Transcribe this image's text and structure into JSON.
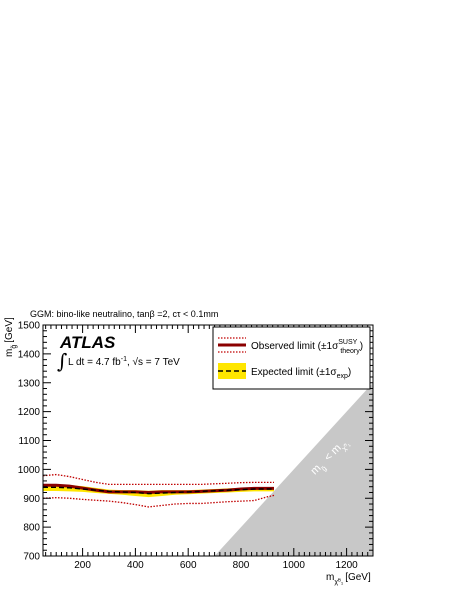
{
  "chart_data": {
    "type": "line",
    "title": "GGM: bino-like neutralino, tanβ =2, cτ < 0.1mm",
    "experiment": "ATLAS",
    "lumi_text": "L dt = 4.7 fb",
    "lumi_sup": "-1",
    "energy_text": ", √s = 7 TeV",
    "xlabel": "m",
    "xlabel_sub": "χ̃⁰₁",
    "xlabel_unit": "[GeV]",
    "ylabel": "m",
    "ylabel_sub": "g̃",
    "ylabel_unit": "[GeV]",
    "xlim": [
      50,
      1300
    ],
    "ylim": [
      700,
      1500
    ],
    "xticks": [
      200,
      400,
      600,
      800,
      1000,
      1200
    ],
    "yticks": [
      700,
      800,
      900,
      1000,
      1100,
      1200,
      1300,
      1400,
      1500
    ],
    "legend": {
      "placement": "top-right",
      "observed_label": "Observed limit (±1σ",
      "observed_sup": "SUSY",
      "observed_sub": "theory",
      "observed_end": ")",
      "expected_label": "Expected limit (±1σ",
      "expected_sub": "exp",
      "expected_end": ")"
    },
    "kinematic_region_label": "m",
    "kinematic_region_sub1": "g̃",
    "kinematic_region_lt": "<",
    "kinematic_region_sub2": "χ̃⁰₁",
    "series": [
      {
        "role": "observed",
        "x": [
          50,
          100,
          150,
          200,
          250,
          300,
          350,
          400,
          450,
          500,
          550,
          600,
          650,
          700,
          750,
          800,
          850,
          900,
          925
        ],
        "y": [
          945,
          945,
          942,
          935,
          928,
          922,
          922,
          922,
          920,
          922,
          922,
          922,
          924,
          926,
          928,
          932,
          934,
          934,
          934
        ]
      },
      {
        "role": "observed_theory_up",
        "x": [
          50,
          100,
          150,
          200,
          250,
          300,
          350,
          400,
          450,
          500,
          550,
          600,
          650,
          700,
          750,
          800,
          850,
          900,
          925
        ],
        "y": [
          978,
          982,
          975,
          965,
          955,
          948,
          948,
          948,
          948,
          948,
          948,
          948,
          948,
          950,
          952,
          954,
          955,
          955,
          955
        ]
      },
      {
        "role": "observed_theory_down",
        "x": [
          50,
          100,
          150,
          200,
          250,
          300,
          350,
          400,
          450,
          500,
          550,
          600,
          650,
          700,
          750,
          800,
          850,
          900,
          925
        ],
        "y": [
          900,
          902,
          900,
          896,
          893,
          890,
          885,
          878,
          870,
          875,
          880,
          882,
          882,
          885,
          888,
          890,
          892,
          905,
          910
        ]
      },
      {
        "role": "expected",
        "x": [
          50,
          100,
          150,
          200,
          250,
          300,
          350,
          400,
          450,
          500,
          550,
          600,
          650,
          700,
          750,
          800,
          850,
          900,
          925
        ],
        "y": [
          938,
          938,
          936,
          932,
          928,
          924,
          922,
          920,
          916,
          918,
          920,
          922,
          924,
          926,
          928,
          930,
          932,
          932,
          932
        ]
      },
      {
        "role": "expected_band_up",
        "x": [
          50,
          100,
          150,
          200,
          250,
          300,
          350,
          400,
          450,
          500,
          550,
          600,
          650,
          700,
          750,
          800,
          850,
          900,
          925
        ],
        "y": [
          948,
          948,
          946,
          942,
          936,
          930,
          928,
          928,
          926,
          928,
          928,
          928,
          930,
          932,
          934,
          936,
          938,
          938,
          938
        ]
      },
      {
        "role": "expected_band_down",
        "x": [
          50,
          100,
          150,
          200,
          250,
          300,
          350,
          400,
          450,
          500,
          550,
          600,
          650,
          700,
          750,
          800,
          850,
          900,
          925
        ],
        "y": [
          925,
          925,
          924,
          922,
          918,
          915,
          912,
          908,
          904,
          908,
          912,
          914,
          916,
          918,
          920,
          922,
          924,
          924,
          924
        ]
      }
    ],
    "excluded_region": {
      "polygon_x": [
        700,
        1300,
        1300
      ],
      "polygon_y": [
        700,
        700,
        1300
      ]
    },
    "colors": {
      "observed": "#8b0000",
      "theory": "#c00000",
      "expected": "#000000",
      "band": "#ffe600",
      "kinematic": "#c8c8c8"
    }
  }
}
